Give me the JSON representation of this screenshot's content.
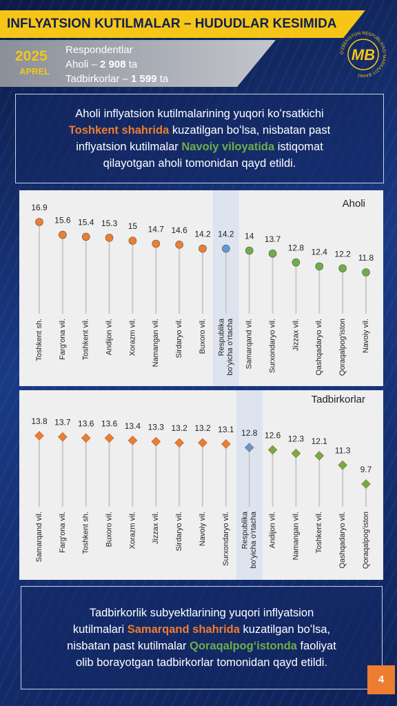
{
  "header": {
    "title": "INFLYATSION KUTILMALAR – HUDUDLAR KESIMIDA",
    "year": "2025",
    "month": "APREL",
    "respondents": "Respondentlar",
    "aholi": [
      "Aholi – ",
      "2 908",
      " ta"
    ],
    "tadbirkorlar": [
      "Tadbirkorlar – ",
      "1 599",
      " ta"
    ],
    "logo_text": "O‘ZBEKISTON RESPUBLIKASI MARKAZIY BANKI",
    "logo_mark": "MB"
  },
  "intro": {
    "parts": [
      "Aholi inflyatsion kutilmalarining yuqori koʻrsatkichi ",
      "Toshkent shahrida",
      " kuzatilgan boʻlsa, nisbatan past inflyatsion kutilmalar ",
      "Navoiy viloyatida",
      " istiqomat qilayotgan aholi tomonidan qayd etildi."
    ]
  },
  "chart_data": [
    {
      "type": "lollipop",
      "title": "Aholi",
      "marker": "circle",
      "stem_color": "#c9c9c9",
      "highlight_color": "#dde4ef",
      "categories": [
        "Toshkent sh.",
        "Farg‘ona vil.",
        "Toshkent vil.",
        "Andijon vil.",
        "Xorazm vil.",
        "Namangan vil.",
        "Sirdaryo vil.",
        "Buxoro vil.",
        "Respublika\nbo‘yicha o‘rtacha",
        "Samarqand vil.",
        "Surxondaryo vil.",
        "Jizzax vil.",
        "Qashqadaryo vil.",
        "Qoraqalpog‘iston",
        "Navoiy vil."
      ],
      "values": [
        16.9,
        15.6,
        15.4,
        15.3,
        15,
        14.7,
        14.6,
        14.2,
        14.2,
        14,
        13.7,
        12.8,
        12.4,
        12.2,
        11.8
      ],
      "colors": [
        "#ed7d31",
        "#ed7d31",
        "#ed7d31",
        "#ed7d31",
        "#ed7d31",
        "#ed7d31",
        "#ed7d31",
        "#ed7d31",
        "#5b9bd5",
        "#70ad47",
        "#70ad47",
        "#70ad47",
        "#70ad47",
        "#70ad47",
        "#70ad47"
      ]
    },
    {
      "type": "lollipop",
      "title": "Tadbirkorlar",
      "marker": "diamond",
      "stem_color": "#c9c9c9",
      "highlight_color": "#dde4ef",
      "categories": [
        "Samarqand vil.",
        "Farg‘ona vil.",
        "Toshkent sh.",
        "Buxoro vil.",
        "Xorazm vil.",
        "Jizzax vil.",
        "Sirdaryo vil.",
        "Navoiy vil.",
        "Surxondaryo vil.",
        "Respublika\nbo‘yicha o‘rtacha",
        "Andijon vil.",
        "Namangan vil.",
        "Toshkent vil.",
        "Qashqadaryo vil.",
        "Qoraqalpog‘iston"
      ],
      "values": [
        13.8,
        13.7,
        13.6,
        13.6,
        13.4,
        13.3,
        13.2,
        13.2,
        13.1,
        12.8,
        12.6,
        12.3,
        12.1,
        11.3,
        9.7
      ],
      "colors": [
        "#ed7d31",
        "#ed7d31",
        "#ed7d31",
        "#ed7d31",
        "#ed7d31",
        "#ed7d31",
        "#ed7d31",
        "#ed7d31",
        "#ed7d31",
        "#5b9bd5",
        "#70ad47",
        "#70ad47",
        "#70ad47",
        "#70ad47",
        "#70ad47"
      ]
    }
  ],
  "outro": {
    "parts": [
      "Tadbirkorlik subyektlarining yuqori inflyatsion kutilmalari ",
      "Samarqand shahrida",
      " kuzatilgan boʻlsa, nisbatan past kutilmalar ",
      "Qoraqalpogʻistonda",
      " faoliyat olib borayotgan tadbirkorlar tomonidan qayd etildi."
    ]
  },
  "page_number": "4"
}
